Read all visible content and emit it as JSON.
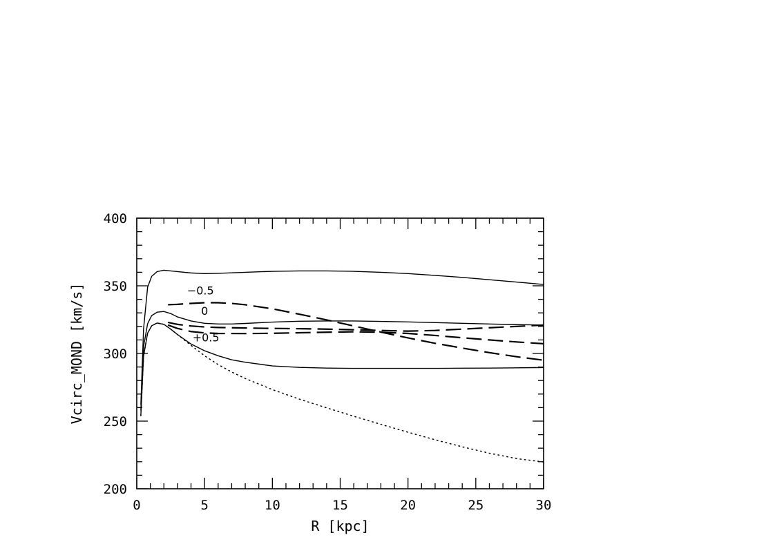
{
  "chart_data": {
    "type": "line",
    "title": "",
    "xlabel": "R [kpc]",
    "ylabel": "Vcirc_MOND [km/s]",
    "xlim": [
      0,
      30
    ],
    "ylim": [
      200,
      400
    ],
    "xticks": [
      0,
      5,
      10,
      15,
      20,
      25,
      30
    ],
    "yticks": [
      200,
      250,
      300,
      350,
      400
    ],
    "grid": false,
    "legend": "none",
    "series": [
      {
        "style": "solid",
        "x": [
          0.3,
          0.5,
          0.8,
          1.1,
          1.5,
          2.0,
          2.5,
          3,
          4,
          5,
          6,
          8,
          10,
          12,
          14,
          16,
          18,
          20,
          22,
          24,
          26,
          28,
          30
        ],
        "y": [
          262,
          318,
          349,
          357,
          360.5,
          361.5,
          361,
          360.5,
          359.5,
          359,
          359.2,
          360,
          360.7,
          361,
          361,
          360.7,
          360,
          359,
          357.7,
          356.2,
          354.5,
          352.8,
          351
        ]
      },
      {
        "style": "solid",
        "x": [
          0.3,
          0.5,
          0.8,
          1.1,
          1.5,
          2.0,
          2.5,
          3,
          4,
          5,
          6,
          7,
          8,
          10,
          12,
          14,
          16,
          18,
          20,
          22,
          24,
          26,
          28,
          30
        ],
        "y": [
          258,
          305,
          322,
          328,
          330.5,
          331,
          329.5,
          327,
          324,
          322.3,
          321.8,
          321.8,
          322.2,
          323.2,
          323.8,
          324,
          324,
          323.7,
          323.3,
          322.8,
          322.3,
          321.8,
          321.3,
          321
        ]
      },
      {
        "style": "solid",
        "x": [
          0.3,
          0.5,
          0.8,
          1.1,
          1.5,
          2.0,
          2.5,
          3,
          4,
          5,
          6,
          7,
          8,
          10,
          12,
          14,
          16,
          18,
          20,
          22,
          24,
          26,
          28,
          30
        ],
        "y": [
          254,
          298,
          315,
          320.5,
          322.5,
          321.5,
          318,
          314,
          307,
          302,
          298.3,
          295.3,
          293.5,
          290.8,
          289.7,
          289.2,
          289,
          289,
          289,
          289,
          289.1,
          289.2,
          289.4,
          289.6
        ]
      },
      {
        "style": "dotted",
        "x": [
          0.3,
          0.5,
          0.8,
          1.1,
          1.5,
          2.0,
          2.5,
          3,
          4,
          5,
          6,
          7,
          8,
          10,
          12,
          14,
          16,
          18,
          20,
          22,
          24,
          26,
          28,
          30
        ],
        "y": [
          254,
          298,
          315,
          320.5,
          322.5,
          321.5,
          318,
          314,
          306,
          298.3,
          291.8,
          286.3,
          281.5,
          273.3,
          266.2,
          259.8,
          253.6,
          247.6,
          241.8,
          236.2,
          231,
          226.3,
          222.3,
          219.8
        ]
      },
      {
        "style": "dashed",
        "x": [
          2.3,
          3,
          4,
          5,
          6,
          7,
          8,
          10,
          12,
          14,
          16,
          18,
          20,
          22,
          24,
          26,
          28,
          30
        ],
        "y": [
          336,
          336.3,
          337,
          337.5,
          337.5,
          337,
          336,
          333,
          329,
          324.8,
          320.3,
          315.8,
          311.5,
          307.5,
          304,
          300.6,
          297.6,
          295
        ]
      },
      {
        "style": "dashed",
        "x": [
          2.3,
          3,
          4,
          5,
          6,
          8,
          10,
          12,
          14,
          16,
          18,
          20,
          22,
          24,
          26,
          28,
          30
        ],
        "y": [
          323,
          321.5,
          320.3,
          319.6,
          319.2,
          318.8,
          318.5,
          318.3,
          318,
          317.5,
          317,
          316.5,
          317,
          318,
          319,
          320,
          321
        ]
      },
      {
        "style": "dashed",
        "x": [
          2.3,
          3,
          4,
          5,
          6,
          8,
          10,
          12,
          14,
          16,
          18,
          20,
          22,
          24,
          26,
          28,
          30
        ],
        "y": [
          321,
          318.5,
          316.2,
          315.2,
          314.8,
          314.7,
          314.9,
          315.3,
          315.7,
          316,
          315.7,
          314.8,
          313.3,
          311.6,
          310,
          308.5,
          307.2
        ]
      }
    ],
    "annotations": [
      {
        "text": "−0.5",
        "x": 4.7,
        "y": 343.5
      },
      {
        "text": "0",
        "x": 5.0,
        "y": 328.5
      },
      {
        "text": "+0.5",
        "x": 5.1,
        "y": 309
      }
    ]
  }
}
